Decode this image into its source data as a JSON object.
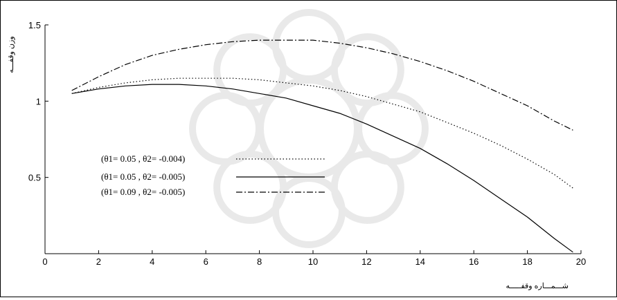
{
  "chart_data": {
    "type": "line",
    "title": "",
    "xlabel": "شـــمـــاره وقفـــــه",
    "ylabel": "وزن وقفـــه",
    "xlim": [
      0,
      20
    ],
    "ylim": [
      0,
      1.5
    ],
    "x_ticks": [
      0,
      2,
      4,
      6,
      8,
      10,
      12,
      14,
      16,
      18,
      20
    ],
    "y_ticks": [
      0.5,
      1,
      1.5
    ],
    "x_tick_labels": [
      "0",
      "2",
      "4",
      "6",
      "8",
      "10",
      "12",
      "14",
      "16",
      "18",
      "20"
    ],
    "y_tick_labels": [
      "0.5",
      "1",
      "1.5"
    ],
    "grid": false,
    "legend_position": "center-left",
    "x": [
      1,
      2,
      3,
      4,
      5,
      6,
      7,
      8,
      9,
      10,
      11,
      12,
      13,
      14,
      15,
      16,
      17,
      18,
      19,
      19.7
    ],
    "series": [
      {
        "name": "(θ1= 0.05 ,    θ2= -0.004)",
        "style": "dotted",
        "color": "#000000",
        "values": [
          1.05,
          1.09,
          1.12,
          1.14,
          1.15,
          1.15,
          1.15,
          1.14,
          1.12,
          1.1,
          1.07,
          1.03,
          0.98,
          0.93,
          0.86,
          0.79,
          0.71,
          0.62,
          0.52,
          0.43
        ]
      },
      {
        "name": "(θ1= 0.05 ,    θ2= -0.005)",
        "style": "solid",
        "color": "#000000",
        "values": [
          1.05,
          1.08,
          1.1,
          1.11,
          1.11,
          1.1,
          1.08,
          1.05,
          1.02,
          0.97,
          0.92,
          0.85,
          0.77,
          0.69,
          0.59,
          0.48,
          0.36,
          0.24,
          0.1,
          0.01
        ]
      },
      {
        "name": "(θ1= 0.09 ,    θ2= -0.005)",
        "style": "dash-dot",
        "color": "#000000",
        "values": [
          1.07,
          1.16,
          1.24,
          1.3,
          1.34,
          1.37,
          1.39,
          1.4,
          1.4,
          1.4,
          1.38,
          1.35,
          1.31,
          1.26,
          1.2,
          1.13,
          1.05,
          0.97,
          0.87,
          0.81
        ]
      }
    ]
  }
}
